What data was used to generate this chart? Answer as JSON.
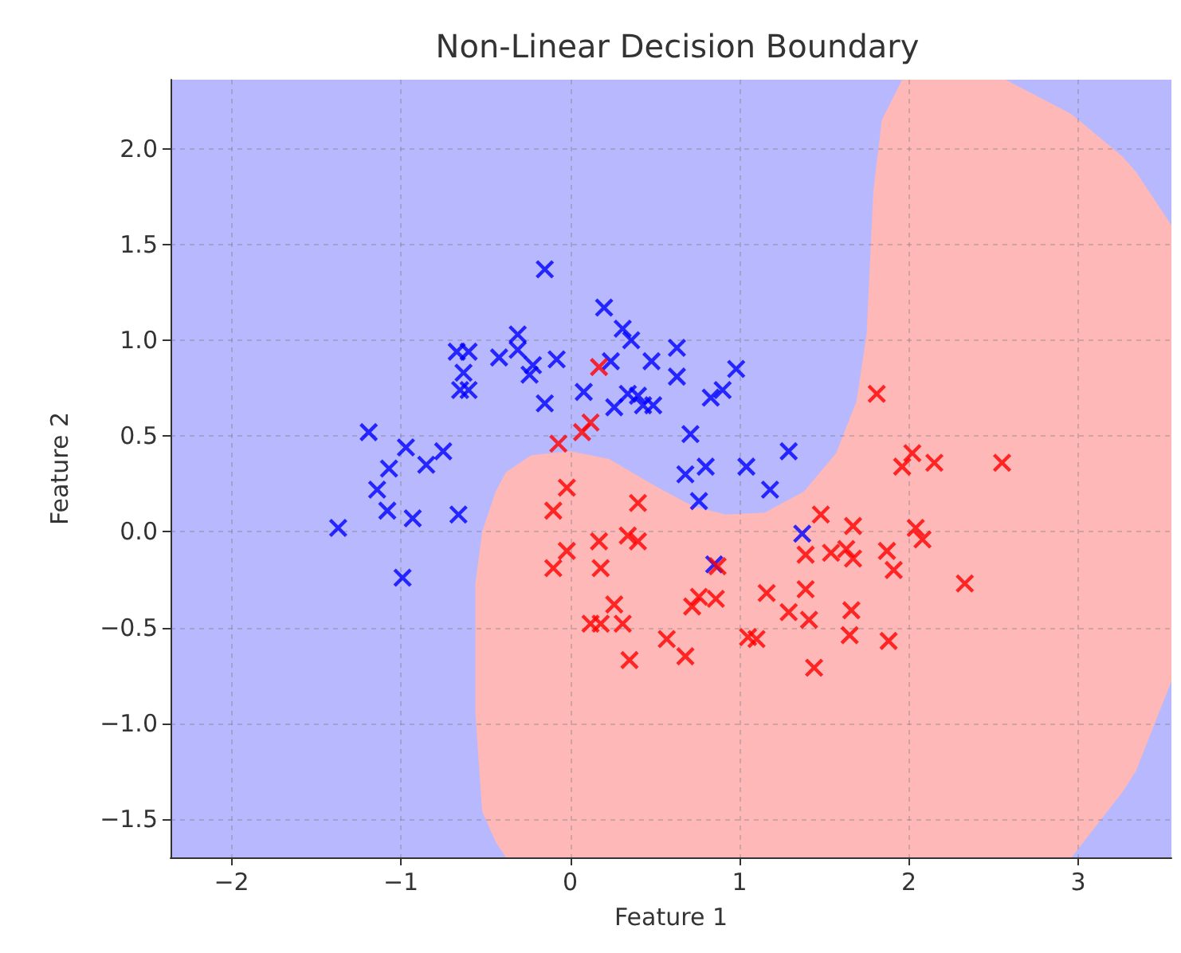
{
  "chart_data": {
    "type": "scatter",
    "title": "Non-Linear Decision Boundary",
    "xlabel": "Feature 1",
    "ylabel": "Feature 2",
    "xlim": [
      -2.36,
      3.55
    ],
    "xticks": [
      {
        "value": -2,
        "label": "−2"
      },
      {
        "value": -1,
        "label": "−1"
      },
      0,
      1,
      2,
      3
    ],
    "ylim": [
      -1.7,
      2.36
    ],
    "yticks": [
      {
        "value": -1.5,
        "label": "−1.5"
      },
      {
        "value": -1.0,
        "label": "−1.0"
      },
      {
        "value": -0.5,
        "label": "−0.5"
      },
      {
        "value": 0,
        "label": "0.0"
      },
      {
        "value": 0.5,
        "label": "0.5"
      },
      {
        "value": 1.0,
        "label": "1.0"
      },
      {
        "value": 1.5,
        "label": "1.5"
      },
      {
        "value": 2.0,
        "label": "2.0"
      }
    ],
    "grid": true,
    "marker": "cross",
    "bands": [
      {
        "axis": "y",
        "from": -1.7,
        "to": 2.36,
        "color": "#b8b8ff"
      }
    ],
    "series": [
      {
        "type": "area",
        "color": "#ffb8b8",
        "values": [
          null,
          null,
          null,
          null,
          null,
          null,
          null,
          null,
          null,
          null,
          null,
          null,
          null,
          null,
          null,
          null,
          null,
          null,
          null,
          null,
          null,
          null,
          null
        ],
        "x": [
          -0.56,
          -0.52,
          -0.44,
          -0.38,
          -0.23,
          0,
          0.23,
          0.5,
          0.73,
          0.92,
          1.15,
          1.38,
          1.57,
          1.69,
          1.75,
          1.79,
          1.84,
          1.96,
          2.57,
          2.96,
          3.26,
          3.34,
          3.55
        ],
        "lower": [
          -0.95,
          -1.46,
          -1.62,
          -1.7,
          -1.7,
          -1.7,
          -1.7,
          -1.7,
          -1.7,
          -1.7,
          -1.7,
          -1.7,
          -1.7,
          -1.7,
          -1.7,
          -1.7,
          -1.7,
          -1.7,
          -1.7,
          -1.7,
          -1.36,
          -1.25,
          -0.78
        ],
        "upper": [
          -0.27,
          0.0,
          0.21,
          0.31,
          0.4,
          0.42,
          0.38,
          0.24,
          0.13,
          0.09,
          0.1,
          0.21,
          0.41,
          0.68,
          1.03,
          1.78,
          2.15,
          2.36,
          2.36,
          2.18,
          1.96,
          1.88,
          1.6
        ]
      },
      {
        "color": "#0000ff",
        "x": [
          -0.15,
          0.2,
          0.31,
          0.36,
          0.63,
          -0.31,
          -0.31,
          -0.42,
          -0.22,
          -0.24,
          -0.08,
          -0.67,
          -0.6,
          -0.63,
          -0.65,
          -0.6,
          0.24,
          0.48,
          0.63,
          0.98,
          0.08,
          -0.15,
          0.26,
          0.34,
          0.4,
          0.43,
          0.49,
          0.83,
          0.9,
          0.71,
          0.68,
          0.8,
          0.76,
          1.04,
          1.18,
          1.29,
          1.37,
          0.85,
          -1.19,
          -0.97,
          -0.75,
          -0.85,
          -1.07,
          -1.14,
          -1.08,
          -0.93,
          -0.66,
          -1.37,
          -0.99
        ],
        "values": [
          1.37,
          1.17,
          1.06,
          1.0,
          0.96,
          1.03,
          0.95,
          0.91,
          0.87,
          0.82,
          0.9,
          0.94,
          0.94,
          0.83,
          0.74,
          0.74,
          0.89,
          0.89,
          0.81,
          0.85,
          0.73,
          0.67,
          0.65,
          0.72,
          0.71,
          0.66,
          0.66,
          0.7,
          0.74,
          0.51,
          0.3,
          0.34,
          0.16,
          0.34,
          0.22,
          0.42,
          -0.01,
          -0.17,
          0.52,
          0.44,
          0.42,
          0.35,
          0.33,
          0.22,
          0.11,
          0.07,
          0.09,
          0.02,
          -0.24
        ]
      },
      {
        "color": "#ff0000",
        "x": [
          0.17,
          -0.07,
          0.07,
          0.12,
          1.81,
          2.02,
          1.96,
          2.15,
          2.55,
          -0.02,
          -0.1,
          0.4,
          1.48,
          1.67,
          2.04,
          2.08,
          -0.02,
          -0.1,
          0.17,
          0.18,
          0.34,
          0.4,
          0.87,
          1.39,
          1.54,
          1.63,
          1.67,
          1.87,
          1.91,
          2.33,
          0.26,
          0.12,
          0.18,
          0.31,
          0.35,
          0.57,
          0.68,
          0.72,
          0.76,
          0.86,
          1.16,
          1.29,
          1.39,
          1.41,
          1.44,
          1.05,
          1.1,
          1.66,
          1.65,
          1.88
        ],
        "values": [
          0.86,
          0.46,
          0.52,
          0.57,
          0.72,
          0.41,
          0.34,
          0.36,
          0.36,
          0.23,
          0.11,
          0.15,
          0.09,
          0.03,
          0.02,
          -0.04,
          -0.1,
          -0.19,
          -0.05,
          -0.19,
          -0.02,
          -0.05,
          -0.18,
          -0.12,
          -0.11,
          -0.09,
          -0.14,
          -0.1,
          -0.2,
          -0.27,
          -0.38,
          -0.48,
          -0.48,
          -0.48,
          -0.67,
          -0.56,
          -0.65,
          -0.39,
          -0.34,
          -0.35,
          -0.32,
          -0.42,
          -0.3,
          -0.46,
          -0.71,
          -0.55,
          -0.56,
          -0.41,
          -0.54,
          -0.57
        ]
      }
    ]
  }
}
